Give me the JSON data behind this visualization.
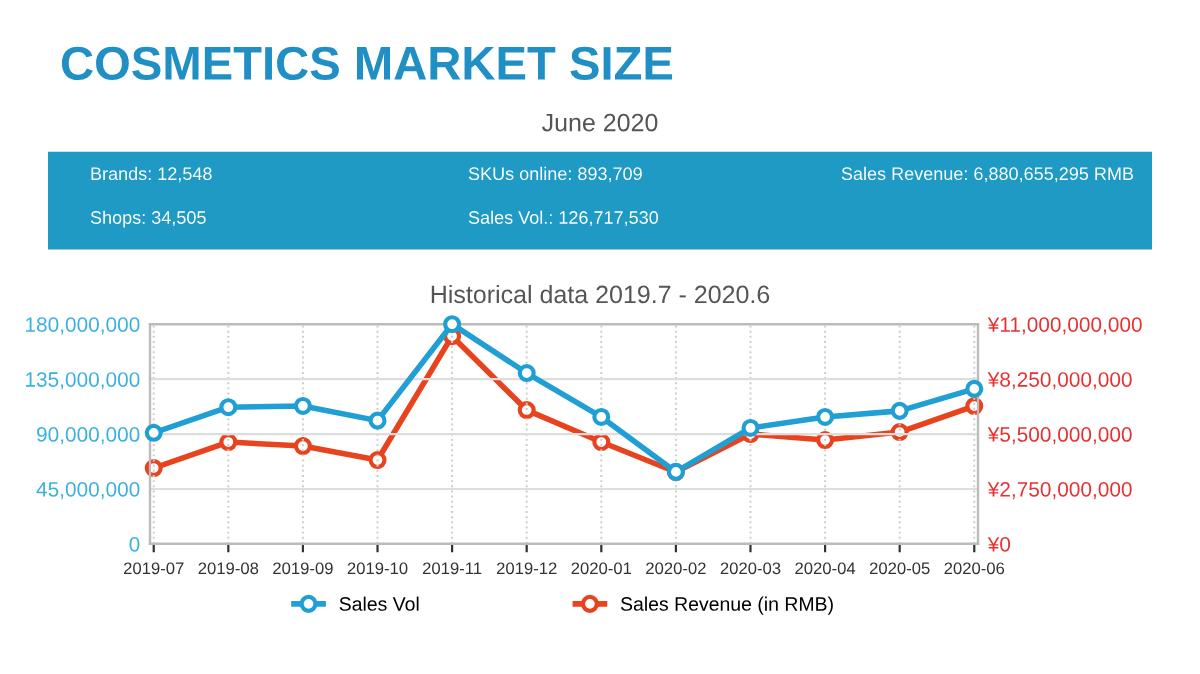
{
  "chart_data": {
    "type": "line",
    "title": "COSMETICS MARKET SIZE",
    "subtitle": "June 2020",
    "annotations": [
      "Brands: 12,548",
      "Shops: 34,505",
      "SKUs online: 893,709",
      "Sales Vol.: 126,717,530",
      "Sales Revenue: 6,880,655,295 RMB",
      "Historical data 2019.7 - 2020.6"
    ],
    "categories": [
      "2019-07",
      "2019-08",
      "2019-09",
      "2019-10",
      "2019-11",
      "2019-12",
      "2020-01",
      "2020-02",
      "2020-03",
      "2020-04",
      "2020-05",
      "2020-06"
    ],
    "series": [
      {
        "name": "Sales Vol",
        "color": "#1f9fd4",
        "values": [
          91000000,
          112000000,
          113000000,
          101000000,
          180000000,
          140000000,
          104000000,
          59000000,
          95000000,
          104000000,
          109000000,
          127000000
        ]
      },
      {
        "name": "Sales Revenue (in RMB)",
        "color": "#e8431f",
        "axis": "y2",
        "values": [
          3800000000,
          5100000000,
          4900000000,
          4200000000,
          10400000000,
          6700000000,
          5100000000,
          3600000000,
          5500000000,
          5200000000,
          5600000000,
          6900000000
        ]
      }
    ],
    "ylim": [
      0,
      180000000
    ],
    "yticks": [
      0,
      {
        "value": 45000000,
        "label": "45,000,000"
      },
      {
        "value": 90000000,
        "label": "90,000,000"
      },
      {
        "value": 135000000,
        "label": "135,000,000"
      },
      {
        "value": 180000000,
        "label": "180,000,000"
      }
    ],
    "y2lim": [
      0,
      11000000000
    ],
    "y2ticks": [
      {
        "value": 0,
        "label": "¥0"
      },
      {
        "value": 2750000000,
        "label": "¥2,750,000,000"
      },
      {
        "value": 5500000000,
        "label": "¥5,500,000,000"
      },
      {
        "value": 8250000000,
        "label": "¥8,250,000,000"
      },
      {
        "value": 11000000000,
        "label": "¥11,000,000,000"
      }
    ],
    "grid": true,
    "legend": "bottom",
    "marker": "circle",
    "line_style": "solid"
  }
}
